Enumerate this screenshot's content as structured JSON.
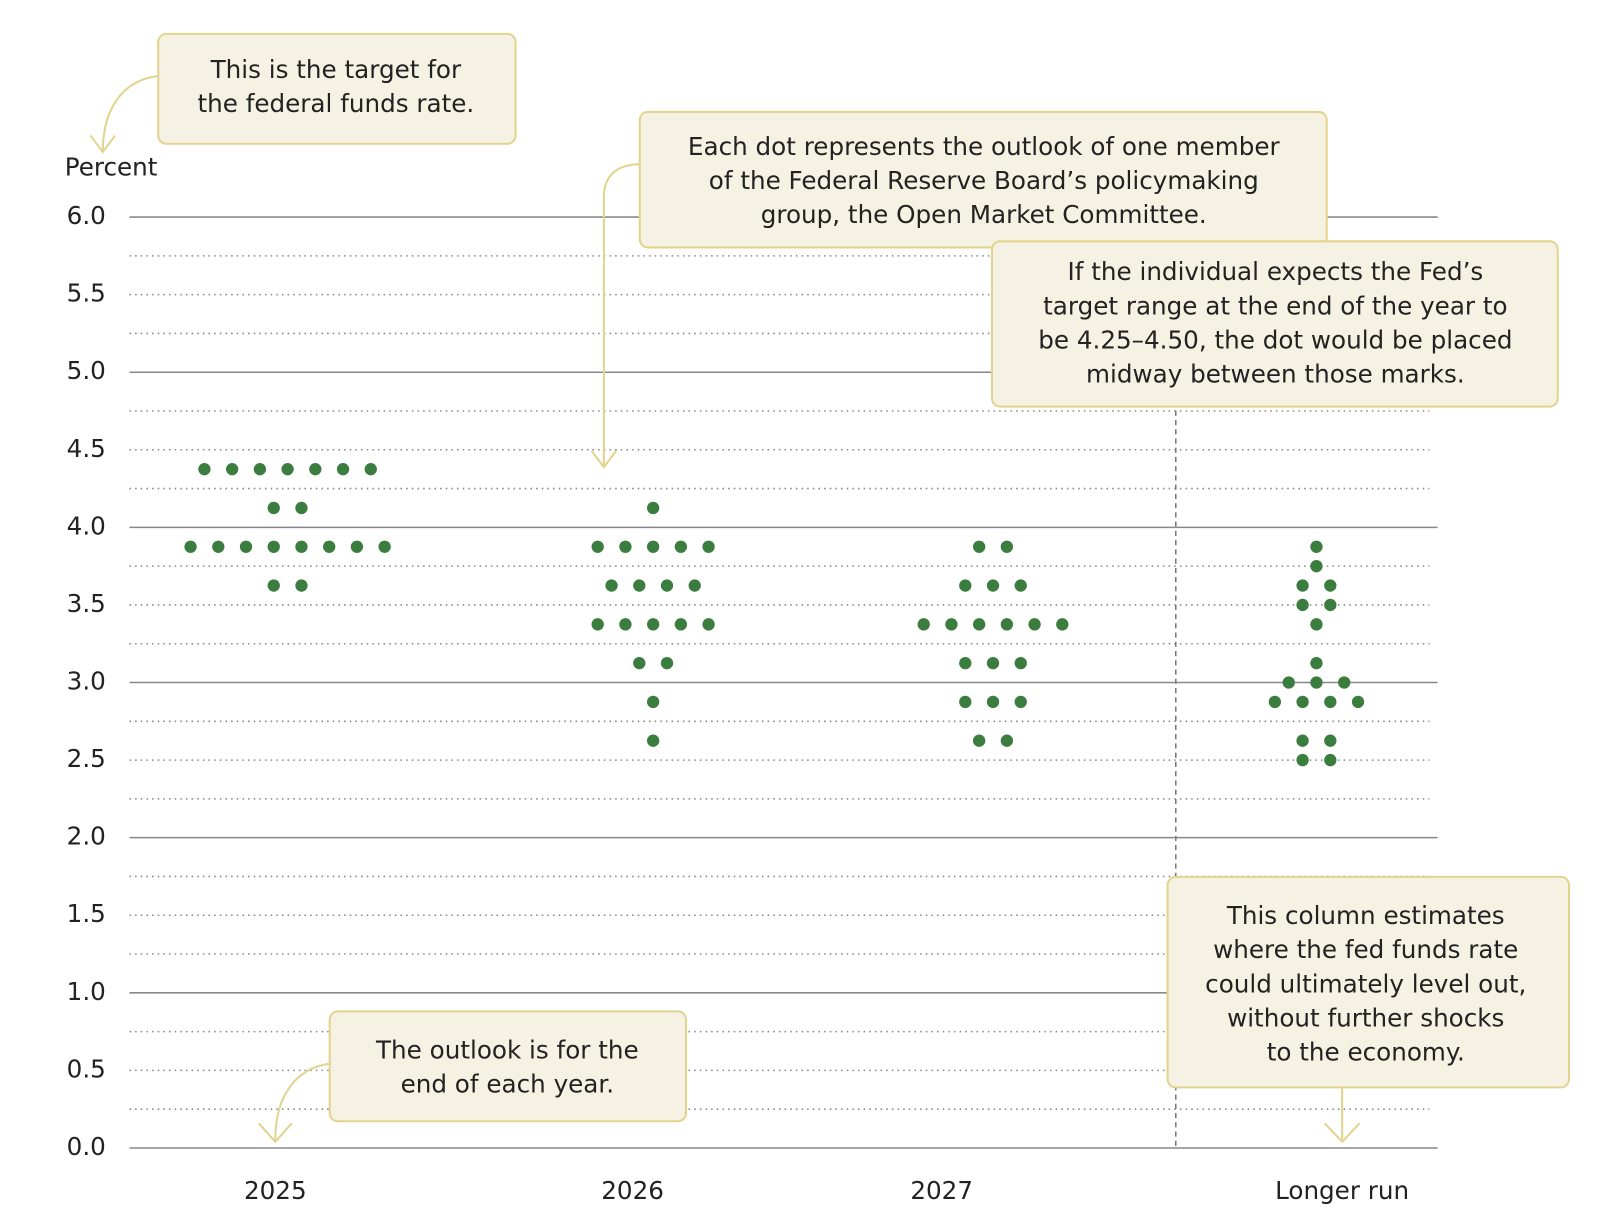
{
  "chart_data": {
    "type": "dot",
    "y_label": "Percent",
    "categories": [
      "2025",
      "2026",
      "2027",
      "Longer run"
    ],
    "values": [
      [
        4.375,
        4.375,
        4.375,
        4.375,
        4.375,
        4.375,
        4.375,
        4.125,
        4.125,
        3.875,
        3.875,
        3.875,
        3.875,
        3.875,
        3.875,
        3.875,
        3.875,
        3.625,
        3.625
      ],
      [
        4.125,
        3.875,
        3.875,
        3.875,
        3.875,
        3.875,
        3.625,
        3.625,
        3.625,
        3.625,
        3.375,
        3.375,
        3.375,
        3.375,
        3.375,
        3.125,
        3.125,
        2.875,
        2.625
      ],
      [
        3.875,
        3.875,
        3.625,
        3.625,
        3.625,
        3.375,
        3.375,
        3.375,
        3.375,
        3.375,
        3.375,
        3.125,
        3.125,
        3.125,
        2.875,
        2.875,
        2.875,
        2.625,
        2.625
      ],
      [
        3.875,
        3.75,
        3.625,
        3.625,
        3.5,
        3.5,
        3.375,
        3.125,
        3.0,
        3.0,
        3.0,
        2.875,
        2.875,
        2.875,
        2.875,
        2.625,
        2.625,
        2.5,
        2.5
      ]
    ],
    "color": "#3b7d3f",
    "ylim": [
      0,
      6
    ],
    "yticks": [
      {
        "value": 0,
        "label": "0.0"
      },
      {
        "value": 0.5,
        "label": "0.5"
      },
      {
        "value": 1,
        "label": "1.0"
      },
      {
        "value": 1.5,
        "label": "1.5"
      },
      {
        "value": 2,
        "label": "2.0"
      },
      {
        "value": 2.5,
        "label": "2.5"
      },
      {
        "value": 3,
        "label": "3.0"
      },
      {
        "value": 3.5,
        "label": "3.5"
      },
      {
        "value": 4,
        "label": "4.0"
      },
      {
        "value": 4.5,
        "label": "4.5"
      },
      {
        "value": 5,
        "label": "5.0"
      },
      {
        "value": 5.5,
        "label": "5.5"
      },
      {
        "value": 6,
        "label": "6.0"
      }
    ],
    "minor_grid": [
      0.25,
      0.75,
      1.25,
      1.75,
      2.25,
      2.75,
      3.25,
      3.75,
      4.25,
      4.75,
      5.25,
      5.75
    ],
    "annotations": [
      [
        "This is the target for",
        "the federal funds rate."
      ],
      [
        "Each dot represents the outlook of one member",
        "of the Federal Reserve Board’s policymaking",
        "group, the Open Market Committee."
      ],
      [
        "If the individual expects the Fed’s",
        "target range at the end of the year to",
        "be 4.25–4.50, the dot would be placed",
        "midway between those marks."
      ],
      [
        "This column estimates",
        "where the fed funds rate",
        "could ultimately level out,",
        "without further shocks",
        "to the economy."
      ],
      [
        "The outlook is for the",
        "end of each year."
      ]
    ]
  }
}
